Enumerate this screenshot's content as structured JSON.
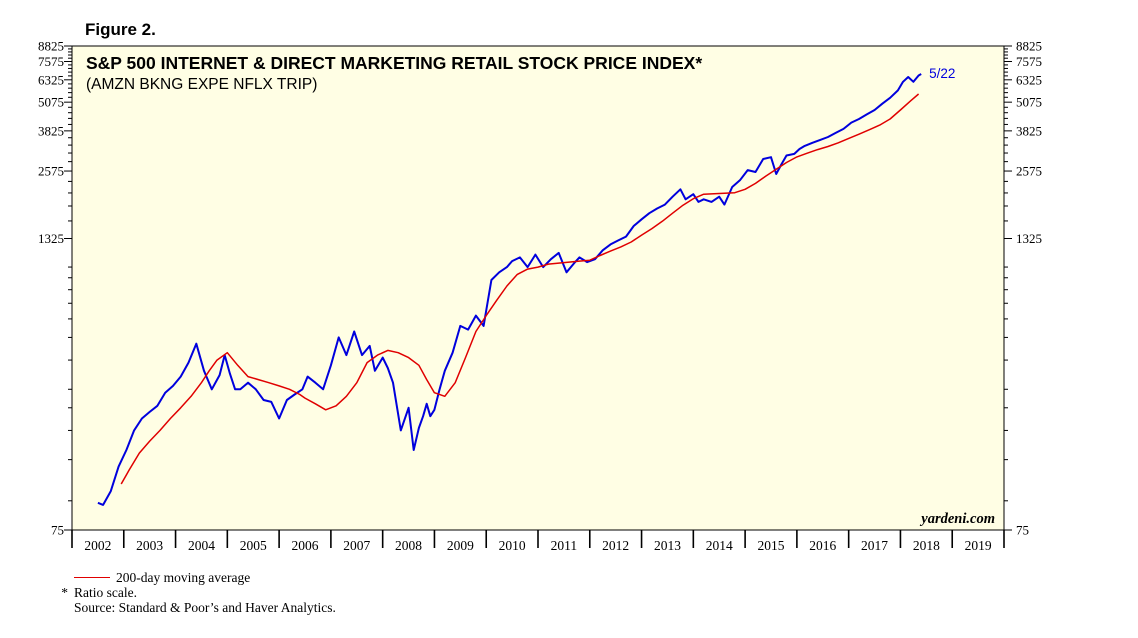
{
  "figure_label": "Figure 2.",
  "chart_data": {
    "type": "line",
    "title": "S&P 500 INTERNET & DIRECT MARKETING RETAIL STOCK PRICE INDEX*",
    "subtitle": "(AMZN BKNG EXPE NFLX TRIP)",
    "y_scale": "log",
    "ylim": [
      75,
      8825
    ],
    "xlim": [
      2002.0,
      2020.0
    ],
    "y_ticks": [
      75,
      1325,
      2575,
      3825,
      5075,
      6325,
      7575,
      8825
    ],
    "x_tick_labels": [
      "2002",
      "2003",
      "2004",
      "2005",
      "2006",
      "2007",
      "2008",
      "2009",
      "2010",
      "2011",
      "2012",
      "2013",
      "2014",
      "2015",
      "2016",
      "2017",
      "2018",
      "2019"
    ],
    "grid": false,
    "background": "#fffee4",
    "annotation": "5/22",
    "watermark": "yardeni.com",
    "series": [
      {
        "name": "",
        "color": "#0000dd",
        "x": [
          2002.5,
          2002.6,
          2002.75,
          2002.9,
          2003.05,
          2003.2,
          2003.35,
          2003.5,
          2003.65,
          2003.8,
          2003.95,
          2004.1,
          2004.25,
          2004.4,
          2004.55,
          2004.7,
          2004.85,
          2004.95,
          2005.05,
          2005.15,
          2005.25,
          2005.4,
          2005.55,
          2005.7,
          2005.85,
          2006.0,
          2006.15,
          2006.3,
          2006.45,
          2006.55,
          2006.7,
          2006.85,
          2007.0,
          2007.15,
          2007.3,
          2007.45,
          2007.6,
          2007.75,
          2007.85,
          2008.0,
          2008.1,
          2008.2,
          2008.35,
          2008.5,
          2008.6,
          2008.7,
          2008.78,
          2008.85,
          2008.92,
          2009.0,
          2009.1,
          2009.2,
          2009.35,
          2009.5,
          2009.65,
          2009.8,
          2009.95,
          2010.1,
          2010.25,
          2010.4,
          2010.5,
          2010.65,
          2010.8,
          2010.95,
          2011.1,
          2011.25,
          2011.4,
          2011.55,
          2011.7,
          2011.8,
          2011.95,
          2012.1,
          2012.25,
          2012.4,
          2012.55,
          2012.7,
          2012.85,
          2013.0,
          2013.15,
          2013.3,
          2013.45,
          2013.6,
          2013.75,
          2013.85,
          2014.0,
          2014.1,
          2014.2,
          2014.35,
          2014.5,
          2014.6,
          2014.75,
          2014.9,
          2015.05,
          2015.2,
          2015.35,
          2015.5,
          2015.6,
          2015.7,
          2015.8,
          2015.95,
          2016.05,
          2016.15,
          2016.3,
          2016.45,
          2016.6,
          2016.75,
          2016.9,
          2017.05,
          2017.2,
          2017.35,
          2017.5,
          2017.65,
          2017.8,
          2017.95,
          2018.05,
          2018.15,
          2018.25,
          2018.35,
          2018.4
        ],
        "values": [
          98,
          96,
          110,
          140,
          165,
          200,
          225,
          240,
          255,
          290,
          310,
          340,
          390,
          470,
          360,
          300,
          345,
          420,
          350,
          300,
          300,
          320,
          300,
          270,
          265,
          225,
          270,
          285,
          300,
          340,
          320,
          300,
          380,
          500,
          420,
          530,
          420,
          460,
          360,
          410,
          370,
          320,
          200,
          250,
          165,
          205,
          230,
          260,
          230,
          245,
          300,
          360,
          430,
          560,
          540,
          620,
          560,
          880,
          950,
          1000,
          1060,
          1100,
          1000,
          1130,
          1000,
          1080,
          1150,
          950,
          1040,
          1100,
          1050,
          1080,
          1180,
          1250,
          1300,
          1350,
          1500,
          1600,
          1700,
          1780,
          1850,
          2000,
          2150,
          1950,
          2050,
          1900,
          1950,
          1900,
          2000,
          1850,
          2200,
          2350,
          2600,
          2550,
          2900,
          2950,
          2500,
          2750,
          3000,
          3050,
          3200,
          3300,
          3400,
          3500,
          3600,
          3750,
          3900,
          4150,
          4300,
          4500,
          4700,
          5000,
          5300,
          5700,
          6200,
          6500,
          6200,
          6600,
          6700
        ]
      },
      {
        "name": "200-day moving average",
        "color": "#e00000",
        "x": [
          2002.95,
          2003.1,
          2003.3,
          2003.5,
          2003.7,
          2003.9,
          2004.1,
          2004.3,
          2004.5,
          2004.65,
          2004.8,
          2005.0,
          2005.2,
          2005.4,
          2005.6,
          2005.8,
          2006.0,
          2006.2,
          2006.4,
          2006.5,
          2006.7,
          2006.9,
          2007.1,
          2007.3,
          2007.5,
          2007.7,
          2007.9,
          2008.1,
          2008.3,
          2008.5,
          2008.7,
          2008.85,
          2009.0,
          2009.2,
          2009.4,
          2009.6,
          2009.8,
          2010.0,
          2010.2,
          2010.4,
          2010.6,
          2010.8,
          2011.0,
          2011.2,
          2011.4,
          2011.6,
          2011.8,
          2012.0,
          2012.2,
          2012.4,
          2012.6,
          2012.8,
          2013.0,
          2013.2,
          2013.4,
          2013.6,
          2013.8,
          2014.0,
          2014.2,
          2014.4,
          2014.6,
          2014.8,
          2015.0,
          2015.2,
          2015.4,
          2015.6,
          2015.8,
          2016.0,
          2016.2,
          2016.4,
          2016.6,
          2016.8,
          2017.0,
          2017.2,
          2017.4,
          2017.6,
          2017.8,
          2018.0,
          2018.2,
          2018.35
        ],
        "values": [
          118,
          135,
          160,
          180,
          200,
          225,
          250,
          280,
          320,
          360,
          400,
          430,
          380,
          340,
          330,
          320,
          310,
          300,
          285,
          275,
          260,
          245,
          255,
          280,
          320,
          390,
          420,
          440,
          430,
          410,
          380,
          330,
          290,
          280,
          320,
          410,
          530,
          620,
          720,
          830,
          930,
          980,
          1000,
          1030,
          1040,
          1050,
          1060,
          1070,
          1120,
          1170,
          1220,
          1280,
          1370,
          1460,
          1570,
          1700,
          1840,
          1960,
          2050,
          2060,
          2070,
          2080,
          2150,
          2280,
          2450,
          2620,
          2800,
          2960,
          3070,
          3180,
          3280,
          3400,
          3550,
          3700,
          3870,
          4050,
          4300,
          4700,
          5150,
          5500
        ]
      }
    ]
  },
  "notes": {
    "legend_label": "200-day moving average",
    "footnote_mark": "*",
    "footnote": "Ratio scale.",
    "source": "Source: Standard & Poor’s and Haver Analytics."
  }
}
